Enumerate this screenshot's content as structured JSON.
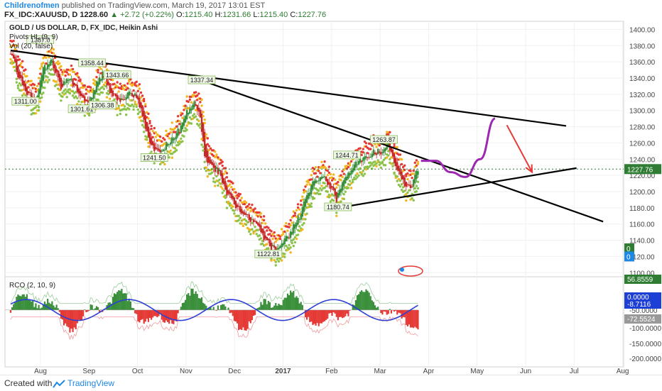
{
  "header": {
    "author": "Childrenofmen",
    "published_text": "published on TradingView.com, March 19, 2017 13:01 EST",
    "symbol_line": "FX_IDC:XAUUSD, D",
    "last_price": "1228.60",
    "change_text": "▲ +2.72 (+0.22%)",
    "o_label": "O:",
    "o_value": "1215.40",
    "h_label": "H:",
    "h_value": "1231.66",
    "l_label": "L:",
    "l_value": "1215.40",
    "c_label": "C:",
    "c_value": "1227.76"
  },
  "legend": {
    "title": "GOLD / US DOLLAR, D, FX_IDC, Heikin Ashi",
    "pivots": "Pivots HL (9, 9)",
    "vol": "Vol (20, false)",
    "rco": "RCO (2, 10, 9)"
  },
  "colors": {
    "bull": "#3a8f3a",
    "bear": "#c62828",
    "dot_red": "#e53935",
    "dot_yellow": "#f2b61e",
    "dot_green": "#8bc34a",
    "trendline": "#000000",
    "projection": "#9c27b0",
    "arrow": "#e53935",
    "price_tag": "#2e7d32",
    "rco_line": "#2c3fd6",
    "rco_pos": "#3a8f3a",
    "rco_neg": "#e53935"
  },
  "footer": {
    "created_with": "Created with",
    "brand": "TradingView"
  },
  "price_axis": {
    "labels": [
      "1400.00",
      "1380.00",
      "1360.00",
      "1340.00",
      "1320.00",
      "1300.00",
      "1280.00",
      "1260.00",
      "1240.00",
      "1220.00",
      "1200.00",
      "1180.00",
      "1160.00",
      "1140.00",
      "1120.00",
      "1100.00"
    ],
    "last_tag": "1227.76",
    "small_tags": [
      "0",
      "0"
    ]
  },
  "rco_axis": {
    "labels": [
      "-50.0000",
      "-100.0000",
      "-150.0000",
      "-200.0000"
    ],
    "tags": [
      "56.8559",
      "0.0000",
      "-8.7116",
      "-72.5524"
    ]
  },
  "time_axis": [
    "Aug",
    "Sep",
    "Oct",
    "Nov",
    "Dec",
    "2017",
    "Feb",
    "Mar",
    "Apr",
    "May",
    "Jun",
    "Jul",
    "Aug"
  ],
  "chart_data": {
    "type": "candlestick",
    "title": "GOLD / US DOLLAR, D, FX_IDC, Heikin Ashi",
    "ylim": [
      1095,
      1410
    ],
    "x_months": [
      "Aug",
      "Sep",
      "Oct",
      "Nov",
      "Dec",
      "2017",
      "Feb",
      "Mar",
      "Apr",
      "May",
      "Jun",
      "Jul",
      "Aug"
    ],
    "price_path": [
      [
        0,
        1370
      ],
      [
        6,
        1340
      ],
      [
        12,
        1320
      ],
      [
        17,
        1308
      ],
      [
        22,
        1350
      ],
      [
        28,
        1360
      ],
      [
        34,
        1330
      ],
      [
        40,
        1340
      ],
      [
        47,
        1320
      ],
      [
        53,
        1308
      ],
      [
        57,
        1330
      ],
      [
        62,
        1345
      ],
      [
        67,
        1325
      ],
      [
        72,
        1310
      ],
      [
        77,
        1318
      ],
      [
        82,
        1322
      ],
      [
        88,
        1305
      ],
      [
        93,
        1262
      ],
      [
        98,
        1250
      ],
      [
        103,
        1255
      ],
      [
        108,
        1262
      ],
      [
        114,
        1275
      ],
      [
        119,
        1298
      ],
      [
        124,
        1310
      ],
      [
        127,
        1302
      ],
      [
        131,
        1245
      ],
      [
        136,
        1232
      ],
      [
        141,
        1222
      ],
      [
        146,
        1198
      ],
      [
        151,
        1186
      ],
      [
        156,
        1178
      ],
      [
        161,
        1168
      ],
      [
        166,
        1158
      ],
      [
        171,
        1145
      ],
      [
        176,
        1132
      ],
      [
        181,
        1128
      ],
      [
        185,
        1138
      ],
      [
        190,
        1152
      ],
      [
        195,
        1170
      ],
      [
        200,
        1192
      ],
      [
        205,
        1212
      ],
      [
        210,
        1222
      ],
      [
        215,
        1210
      ],
      [
        220,
        1190
      ],
      [
        225,
        1212
      ],
      [
        230,
        1228
      ],
      [
        235,
        1236
      ],
      [
        240,
        1242
      ],
      [
        245,
        1250
      ],
      [
        250,
        1248
      ],
      [
        255,
        1258
      ],
      [
        258,
        1244
      ],
      [
        262,
        1222
      ],
      [
        266,
        1208
      ],
      [
        270,
        1204
      ],
      [
        273,
        1220
      ],
      [
        275,
        1228
      ]
    ],
    "pivot_labels": [
      {
        "bar": 20,
        "price": 1387.0,
        "text": "1387.0"
      },
      {
        "bar": 10,
        "price": 1311.0,
        "text": "1311.00"
      },
      {
        "bar": 48,
        "price": 1301.61,
        "text": "1301.61"
      },
      {
        "bar": 55,
        "price": 1358.44,
        "text": "1358.44"
      },
      {
        "bar": 62,
        "price": 1306.38,
        "text": "1306.38"
      },
      {
        "bar": 72,
        "price": 1343.66,
        "text": "1343.66"
      },
      {
        "bar": 97,
        "price": 1241.5,
        "text": "1241.50"
      },
      {
        "bar": 129,
        "price": 1337.34,
        "text": "1337.34"
      },
      {
        "bar": 174,
        "price": 1122.81,
        "text": "1122.81"
      },
      {
        "bar": 221,
        "price": 1180.74,
        "text": "1180.74"
      },
      {
        "bar": 227,
        "price": 1244.71,
        "text": "1244.71"
      },
      {
        "bar": 252,
        "price": 1263.87,
        "text": "1263.87"
      }
    ],
    "trendlines": [
      {
        "from": [
          0,
          1374
        ],
        "to": [
          375,
          1281
        ]
      },
      {
        "from": [
          129,
          1337
        ],
        "to": [
          400,
          1163
        ]
      },
      {
        "from": [
          221,
          1180
        ],
        "to": [
          382,
          1229
        ]
      }
    ],
    "projection": [
      [
        277,
        1238
      ],
      [
        287,
        1238
      ],
      [
        297,
        1224
      ],
      [
        307,
        1218
      ],
      [
        317,
        1240
      ],
      [
        327,
        1290
      ]
    ],
    "forecast_arrow": {
      "from": [
        335,
        1282
      ],
      "to": [
        352,
        1224
      ]
    },
    "last_close": 1227.76,
    "rco_range": [
      -80,
      70
    ]
  }
}
